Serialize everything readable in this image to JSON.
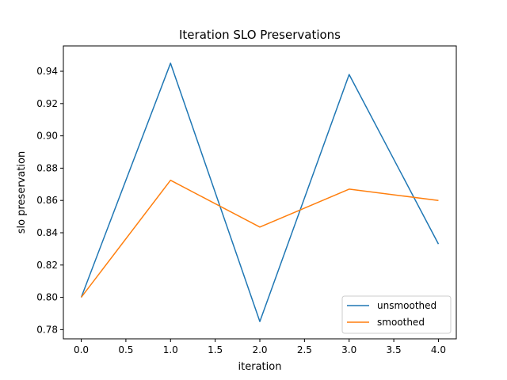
{
  "chart_data": {
    "type": "line",
    "title": "Iteration SLO Preservations",
    "xlabel": "iteration",
    "ylabel": "slo preservation",
    "x": [
      0,
      1,
      2,
      3,
      4
    ],
    "xlim": [
      -0.2,
      4.2
    ],
    "ylim": [
      0.7743,
      0.9557
    ],
    "xticks": [
      "0.0",
      "0.5",
      "1.0",
      "1.5",
      "2.0",
      "2.5",
      "3.0",
      "3.5",
      "4.0"
    ],
    "yticks": [
      "0.78",
      "0.80",
      "0.82",
      "0.84",
      "0.86",
      "0.88",
      "0.90",
      "0.92",
      "0.94"
    ],
    "grid": false,
    "legend_position": "lower-right",
    "series": [
      {
        "name": "unsmoothed",
        "color": "#1f77b4",
        "values": [
          0.8,
          0.945,
          0.785,
          0.938,
          0.833
        ]
      },
      {
        "name": "smoothed",
        "color": "#ff7f0e",
        "values": [
          0.8,
          0.8725,
          0.8435,
          0.867,
          0.86
        ]
      }
    ]
  }
}
